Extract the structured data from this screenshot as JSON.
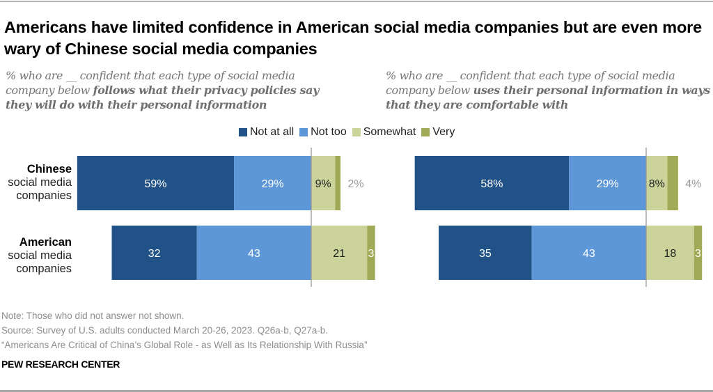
{
  "title": "Americans have limited confidence in American social media companies but are even more wary of Chinese social media companies",
  "panels": [
    {
      "subtitle_plain": "% who are __ confident that each type of social media company below ",
      "subtitle_bold": "follows what their privacy policies say they will do with their personal information"
    },
    {
      "subtitle_plain": "% who are __ confident that each type of social media company below ",
      "subtitle_bold": "uses their personal information in ways that they are comfortable with"
    }
  ],
  "rows": [
    {
      "bold": "Chinese",
      "rest1": "social media",
      "rest2": "companies"
    },
    {
      "bold": "American",
      "rest1": "social media",
      "rest2": "companies"
    }
  ],
  "legend": [
    {
      "label": "Not at all",
      "color": "#215287"
    },
    {
      "label": "Not too",
      "color": "#5e97d8"
    },
    {
      "label": "Somewhat",
      "color": "#cbd29a"
    },
    {
      "label": "Very",
      "color": "#a0a955"
    }
  ],
  "chart_data": {
    "type": "bar",
    "subtype": "diverging-stacked-horizontal",
    "categories": [
      "Chinese social media companies",
      "American social media companies"
    ],
    "legend_position": "top-center",
    "series_names": [
      "Not at all",
      "Not too",
      "Somewhat",
      "Very"
    ],
    "charts": [
      {
        "title": "follows what their privacy policies say they will do with their personal information",
        "series": [
          {
            "name": "Not at all",
            "values": [
              59,
              32
            ],
            "labels": [
              "59%",
              "32"
            ]
          },
          {
            "name": "Not too",
            "values": [
              29,
              43
            ],
            "labels": [
              "29%",
              "43"
            ]
          },
          {
            "name": "Somewhat",
            "values": [
              9,
              21
            ],
            "labels": [
              "9%",
              "21"
            ]
          },
          {
            "name": "Very",
            "values": [
              2,
              3
            ],
            "labels": [
              "2%",
              "3"
            ]
          }
        ]
      },
      {
        "title": "uses their personal information in ways that they are comfortable with",
        "series": [
          {
            "name": "Not at all",
            "values": [
              58,
              35
            ],
            "labels": [
              "58%",
              "35"
            ]
          },
          {
            "name": "Not too",
            "values": [
              29,
              43
            ],
            "labels": [
              "29%",
              "43"
            ]
          },
          {
            "name": "Somewhat",
            "values": [
              8,
              18
            ],
            "labels": [
              "8%",
              "18"
            ]
          },
          {
            "name": "Very",
            "values": [
              4,
              3
            ],
            "labels": [
              "4%",
              "3"
            ]
          }
        ]
      }
    ]
  },
  "footer": {
    "note": "Note: Those who did not answer not shown.",
    "source": "Source: Survey of U.S. adults conducted March 20-26, 2023. Q26a-b, Q27a-b.",
    "report": "“Americans Are Critical of China’s Global Role - as Well as Its Relationship With Russia”",
    "brand": "PEW RESEARCH CENTER"
  }
}
